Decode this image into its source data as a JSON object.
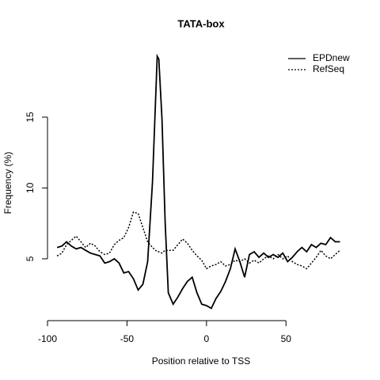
{
  "chart_data": {
    "type": "line",
    "title": "TATA-box",
    "x_label": "Position relative to TSS",
    "y_label": "Frequency (%)",
    "x": [
      -94,
      -91,
      -88,
      -85,
      -82,
      -79,
      -76,
      -73,
      -70,
      -67,
      -64,
      -61,
      -58,
      -55,
      -52,
      -49,
      -46,
      -43,
      -40,
      -37,
      -34,
      -31,
      -30,
      -28,
      -26,
      -24,
      -21,
      -18,
      -15,
      -12,
      -9,
      -6,
      -3,
      0,
      3,
      6,
      9,
      12,
      15,
      18,
      21,
      24,
      27,
      30,
      33,
      36,
      39,
      42,
      45,
      48,
      51,
      54,
      57,
      60,
      63,
      66,
      69,
      72,
      75,
      78,
      81,
      84
    ],
    "series": [
      {
        "name": "EPDnew",
        "color": "#000000",
        "dash": "solid",
        "values": [
          5.8,
          5.9,
          6.2,
          5.9,
          5.7,
          5.8,
          5.6,
          5.4,
          5.3,
          5.2,
          4.7,
          4.8,
          5.0,
          4.7,
          4.0,
          4.1,
          3.6,
          2.8,
          3.2,
          4.8,
          10.4,
          19.3,
          19.1,
          14.9,
          7.6,
          2.6,
          1.8,
          2.3,
          2.9,
          3.4,
          3.7,
          2.6,
          1.8,
          1.7,
          1.5,
          2.2,
          2.7,
          3.4,
          4.3,
          5.7,
          4.8,
          3.7,
          5.3,
          5.5,
          5.1,
          5.4,
          5.1,
          5.3,
          5.1,
          5.4,
          4.8,
          5.1,
          5.5,
          5.8,
          5.5,
          6.0,
          5.8,
          6.1,
          6.0,
          6.5,
          6.2,
          6.2
        ]
      },
      {
        "name": "RefSeq",
        "color": "#000000",
        "dash": "dotted",
        "values": [
          5.2,
          5.4,
          6.0,
          6.3,
          6.6,
          6.2,
          5.8,
          6.1,
          5.9,
          5.5,
          5.3,
          5.4,
          6.0,
          6.3,
          6.5,
          7.2,
          8.3,
          8.2,
          7.2,
          6.2,
          5.8,
          5.5,
          5.5,
          5.4,
          5.6,
          5.6,
          5.6,
          6.0,
          6.4,
          6.1,
          5.6,
          5.2,
          4.9,
          4.3,
          4.5,
          4.6,
          4.8,
          4.5,
          4.6,
          4.9,
          4.8,
          5.0,
          4.7,
          4.9,
          4.7,
          5.0,
          5.2,
          5.0,
          5.3,
          5.0,
          5.2,
          4.8,
          4.6,
          4.5,
          4.3,
          4.7,
          5.1,
          5.6,
          5.2,
          5.0,
          5.3,
          5.6
        ]
      }
    ],
    "xlim": [
      -102.2,
      92.2
    ],
    "ylim": [
      0.58,
      20.1
    ],
    "xticks": [
      -100,
      -50,
      0,
      50
    ],
    "yticks": [
      5,
      10,
      15
    ],
    "legend": "topright"
  }
}
